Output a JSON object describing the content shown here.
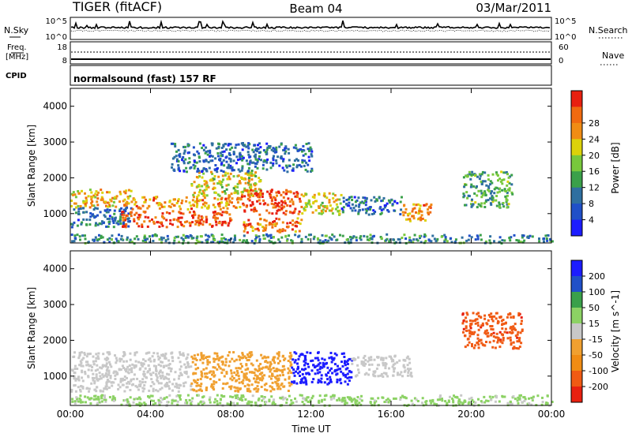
{
  "header": {
    "radar": "TIGER (fitACF)",
    "beam": "Beam 04",
    "date": "03/Mar/2011"
  },
  "strips": {
    "nsky": {
      "label": "N.Sky",
      "ticks": [
        "10^5",
        "10^0"
      ]
    },
    "nsearch": {
      "label": "N.Search",
      "ticks": [
        "10^5",
        "10^0"
      ]
    },
    "freq": {
      "label_line1": "Freq.",
      "label_line2": "[MHz]",
      "ticks": [
        "18",
        "8"
      ]
    },
    "nave": {
      "label": "Nave",
      "ticks": [
        "60",
        "0"
      ]
    },
    "cpid": {
      "label": "CPID",
      "text": "normalsound (fast) 157 RF"
    }
  },
  "colors": {
    "power": [
      "#1c1cff",
      "#2050c8",
      "#2f6fa0",
      "#3aa04a",
      "#78c83c",
      "#dcd20a",
      "#f08c14",
      "#f06a10",
      "#e82010"
    ],
    "velocity": [
      "#1c1cff",
      "#2050c8",
      "#3aa04a",
      "#8cd264",
      "#c8c8c8",
      "#f0a030",
      "#f08c14",
      "#f05a14",
      "#e82010"
    ]
  },
  "chart_data": [
    {
      "type": "heatmap",
      "ylabel": "Slant Range [km]",
      "xlabel": "",
      "x_ticks": [
        "00:00",
        "04:00",
        "08:00",
        "12:00",
        "16:00",
        "20:00",
        "00:00"
      ],
      "y_ticks": [
        1000,
        2000,
        3000,
        4000
      ],
      "ylim": [
        180,
        4500
      ],
      "xlim_hours": [
        0,
        24
      ],
      "colorbar": {
        "label": "Power [dB]",
        "ticks": [
          4,
          8,
          12,
          16,
          20,
          24,
          28
        ],
        "range": [
          0,
          30
        ]
      },
      "regions": [
        {
          "t0": 0.0,
          "t1": 3.0,
          "r0": 1200,
          "r1": 1700,
          "value": 20
        },
        {
          "t0": 0.0,
          "t1": 3.0,
          "r0": 650,
          "r1": 1200,
          "value": 8
        },
        {
          "t0": 2.5,
          "t1": 8.0,
          "r0": 650,
          "r1": 1100,
          "value": 26
        },
        {
          "t0": 3.0,
          "t1": 8.5,
          "r0": 1150,
          "r1": 1500,
          "value": 22
        },
        {
          "t0": 6.0,
          "t1": 9.5,
          "r0": 1500,
          "r1": 2200,
          "value": 18
        },
        {
          "t0": 8.5,
          "t1": 11.5,
          "r0": 1000,
          "r1": 1700,
          "value": 27
        },
        {
          "t0": 8.5,
          "t1": 11.5,
          "r0": 500,
          "r1": 900,
          "value": 24
        },
        {
          "t0": 11.5,
          "t1": 13.5,
          "r0": 1000,
          "r1": 1600,
          "value": 18
        },
        {
          "t0": 13.5,
          "t1": 16.5,
          "r0": 1000,
          "r1": 1500,
          "value": 7
        },
        {
          "t0": 16.5,
          "t1": 18.0,
          "r0": 800,
          "r1": 1300,
          "value": 22
        },
        {
          "t0": 19.5,
          "t1": 22.0,
          "r0": 1200,
          "r1": 2200,
          "value": 12
        },
        {
          "t0": 5.0,
          "t1": 12.0,
          "r0": 2200,
          "r1": 3000,
          "value": 7
        },
        {
          "t0": 0.0,
          "t1": 24.0,
          "r0": 200,
          "r1": 450,
          "value": 10
        }
      ]
    },
    {
      "type": "heatmap",
      "ylabel": "Slant Range [km]",
      "xlabel": "Time UT",
      "x_ticks": [
        "00:00",
        "04:00",
        "08:00",
        "12:00",
        "16:00",
        "20:00",
        "00:00"
      ],
      "y_ticks": [
        1000,
        2000,
        3000,
        4000
      ],
      "ylim": [
        180,
        4500
      ],
      "xlim_hours": [
        0,
        24
      ],
      "colorbar": {
        "label": "Velocity [m s^-1]",
        "ticks": [
          200,
          100,
          50,
          15,
          -15,
          -50,
          -100,
          -200
        ],
        "range": [
          -250,
          250
        ]
      },
      "regions": [
        {
          "t0": 0.0,
          "t1": 6.0,
          "r0": 600,
          "r1": 1700,
          "value": 0
        },
        {
          "t0": 6.0,
          "t1": 11.0,
          "r0": 600,
          "r1": 1700,
          "value": -60
        },
        {
          "t0": 11.0,
          "t1": 14.0,
          "r0": 800,
          "r1": 1700,
          "value": 220
        },
        {
          "t0": 14.0,
          "t1": 17.0,
          "r0": 1000,
          "r1": 1600,
          "value": 0
        },
        {
          "t0": 19.5,
          "t1": 22.5,
          "r0": 1800,
          "r1": 2800,
          "value": -180
        },
        {
          "t0": 0.0,
          "t1": 24.0,
          "r0": 200,
          "r1": 500,
          "value": 40
        }
      ]
    }
  ]
}
